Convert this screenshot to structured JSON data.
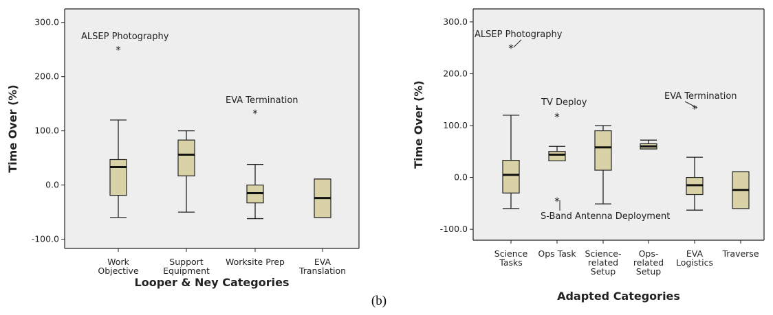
{
  "caption": "(b)",
  "chart_data": [
    {
      "type": "boxplot",
      "xlabel": "Looper & Ney Categories",
      "ylabel": "Time Over (%)",
      "ylim": [
        -117,
        325
      ],
      "yticks": [
        "300.0",
        "200.0",
        "100.0",
        "0.0",
        "-100.0"
      ],
      "ytick_values": [
        300,
        200,
        100,
        0,
        -100
      ],
      "grid": false,
      "categories": [
        [
          "Work",
          "Objective"
        ],
        [
          "Support",
          "Equipment"
        ],
        [
          "Worksite Prep"
        ],
        [
          "EVA",
          "Translation"
        ]
      ],
      "boxes": [
        {
          "min": -60,
          "q1": -19,
          "median": 33,
          "q3": 47,
          "max": 120
        },
        {
          "min": -50,
          "q1": 17,
          "median": 56,
          "q3": 83,
          "max": 100
        },
        {
          "min": -62,
          "q1": -33,
          "median": -15,
          "q3": 0,
          "max": 38
        },
        {
          "min": -60,
          "q1": -60,
          "median": -24,
          "q3": 11,
          "max": 11
        }
      ],
      "annotations": [
        {
          "text": "ALSEP Photography",
          "category": 0,
          "value": 250
        },
        {
          "text": "EVA Termination",
          "category": 2,
          "value": 133
        }
      ]
    },
    {
      "type": "boxplot",
      "xlabel": "Adapted Categories",
      "ylabel": "Time Over (%)",
      "ylim": [
        -121,
        325
      ],
      "yticks": [
        "300.0",
        "200.0",
        "100.0",
        "0.0",
        "-100.0"
      ],
      "ytick_values": [
        300,
        200,
        100,
        0,
        -100
      ],
      "grid": false,
      "categories": [
        [
          "Science",
          "Tasks"
        ],
        [
          "Ops Task"
        ],
        [
          "Science-",
          "related",
          "Setup"
        ],
        [
          "Ops-",
          "related",
          "Setup"
        ],
        [
          "EVA",
          "Logistics"
        ],
        [
          "Traverse"
        ]
      ],
      "boxes": [
        {
          "min": -60,
          "q1": -30,
          "median": 5,
          "q3": 33,
          "max": 120
        },
        {
          "min": 32,
          "q1": 32,
          "median": 44,
          "q3": 50,
          "max": 60
        },
        {
          "min": -51,
          "q1": 14,
          "median": 58,
          "q3": 90,
          "max": 100
        },
        {
          "min": 55,
          "q1": 55,
          "median": 60,
          "q3": 65,
          "max": 72
        },
        {
          "min": -63,
          "q1": -33,
          "median": -15,
          "q3": 0,
          "max": 39
        },
        {
          "min": -60,
          "q1": -60,
          "median": -24,
          "q3": 11,
          "max": 11
        }
      ],
      "annotations": [
        {
          "text": "ALSEP Photography",
          "category": 0,
          "value": 250
        },
        {
          "text": "TV Deploy",
          "category": 1,
          "value": 118
        },
        {
          "text": "S-Band Antenna Deployment",
          "category": 1,
          "value": -45
        },
        {
          "text": "EVA Termination",
          "category": 4,
          "value": 133
        }
      ]
    }
  ]
}
